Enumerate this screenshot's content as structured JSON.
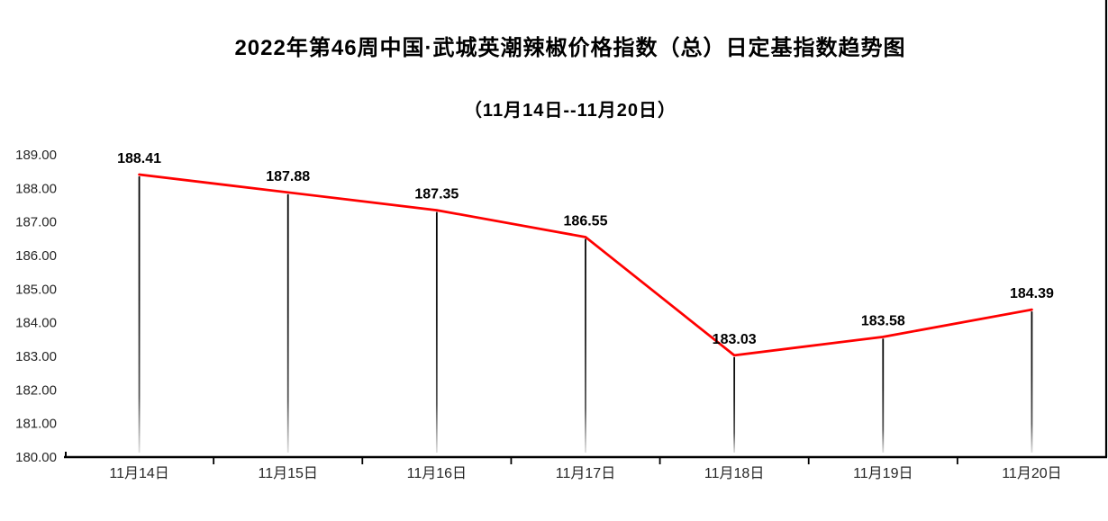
{
  "chart_data": {
    "type": "line",
    "title": "2022年第46周中国·武城英潮辣椒价格指数（总）日定基指数趋势图",
    "subtitle": "（11月14日--11月20日）",
    "categories": [
      "11月14日",
      "11月15日",
      "11月16日",
      "11月17日",
      "11月18日",
      "11月19日",
      "11月20日"
    ],
    "values": [
      188.41,
      187.88,
      187.35,
      186.55,
      183.03,
      183.58,
      184.39
    ],
    "data_labels": [
      "188.41",
      "187.88",
      "187.35",
      "186.55",
      "183.03",
      "183.58",
      "184.39"
    ],
    "xlabel": "",
    "ylabel": "",
    "ylim": [
      180,
      189
    ],
    "y_tick_step": 1,
    "y_tick_labels": [
      "180.00",
      "181.00",
      "182.00",
      "183.00",
      "184.00",
      "185.00",
      "186.00",
      "187.00",
      "188.00",
      "189.00"
    ],
    "grid": false,
    "legend": "none",
    "marker": "none",
    "drop_lines": "vertical-fade",
    "colors": {
      "line": "#ff0000",
      "drop_line_top": "#000000",
      "drop_line_mid": "#555555",
      "drop_line_bottom": "#e0e0e0",
      "axis": "#000000",
      "title_text": "#000000",
      "data_label_text": "#000000",
      "tick_label_text": "#262626",
      "background": "#ffffff"
    }
  }
}
